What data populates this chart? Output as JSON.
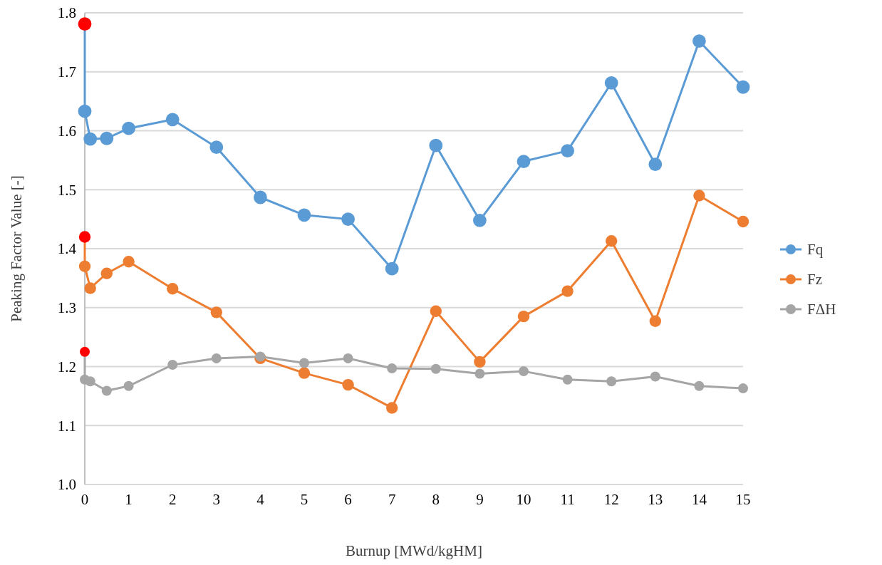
{
  "chart_data": {
    "type": "line",
    "xlabel": "Burnup [MWd/kgHM]",
    "ylabel": "Peaking Factor Value [-]",
    "x": [
      0,
      0,
      0.125,
      0.5,
      1,
      2,
      3,
      4,
      5,
      6,
      7,
      8,
      9,
      10,
      11,
      12,
      13,
      14,
      15
    ],
    "xlim": [
      0,
      15
    ],
    "xticks": [
      0,
      1,
      2,
      3,
      4,
      5,
      6,
      7,
      8,
      9,
      10,
      11,
      12,
      13,
      14,
      15
    ],
    "ylim": [
      1.0,
      1.8
    ],
    "yticks": [
      {
        "value": 1.0,
        "label": "1.0"
      },
      {
        "value": 1.1,
        "label": "1.1"
      },
      {
        "value": 1.2,
        "label": "1.2"
      },
      {
        "value": 1.3,
        "label": "1.3"
      },
      {
        "value": 1.4,
        "label": "1.4"
      },
      {
        "value": 1.5,
        "label": "1.5"
      },
      {
        "value": 1.6,
        "label": "1.6"
      },
      {
        "value": 1.7,
        "label": "1.7"
      },
      {
        "value": 1.8,
        "label": "1.8"
      }
    ],
    "grid": "y",
    "legend": "right",
    "marker": "circle",
    "line_style": "solid",
    "series": [
      {
        "name": "Fq",
        "color": "#5b9bd5",
        "colors": [
          "#ff0000",
          "#5b9bd5",
          "#5b9bd5",
          "#5b9bd5",
          "#5b9bd5",
          "#5b9bd5",
          "#5b9bd5",
          "#5b9bd5",
          "#5b9bd5",
          "#5b9bd5",
          "#5b9bd5",
          "#5b9bd5",
          "#5b9bd5",
          "#5b9bd5",
          "#5b9bd5",
          "#5b9bd5",
          "#5b9bd5",
          "#5b9bd5",
          "#5b9bd5"
        ],
        "values": [
          1.781,
          1.633,
          1.586,
          1.587,
          1.604,
          1.619,
          1.572,
          1.487,
          1.457,
          1.45,
          1.366,
          1.575,
          1.448,
          1.548,
          1.566,
          1.681,
          1.543,
          1.752,
          1.674
        ]
      },
      {
        "name": "Fz",
        "color": "#ed7d31",
        "colors": [
          "#ff0000",
          "#ed7d31",
          "#ed7d31",
          "#ed7d31",
          "#ed7d31",
          "#ed7d31",
          "#ed7d31",
          "#ed7d31",
          "#ed7d31",
          "#ed7d31",
          "#ed7d31",
          "#ed7d31",
          "#ed7d31",
          "#ed7d31",
          "#ed7d31",
          "#ed7d31",
          "#ed7d31",
          "#ed7d31",
          "#ed7d31"
        ],
        "values": [
          1.42,
          1.37,
          1.333,
          1.358,
          1.378,
          1.332,
          1.292,
          1.214,
          1.189,
          1.169,
          1.13,
          1.294,
          1.208,
          1.285,
          1.328,
          1.413,
          1.277,
          1.49,
          1.446
        ]
      },
      {
        "name": "FΔH",
        "color": "#a5a5a5",
        "colors": [
          "#ff0000",
          "#a5a5a5",
          "#a5a5a5",
          "#a5a5a5",
          "#a5a5a5",
          "#a5a5a5",
          "#a5a5a5",
          "#a5a5a5",
          "#a5a5a5",
          "#a5a5a5",
          "#a5a5a5",
          "#a5a5a5",
          "#a5a5a5",
          "#a5a5a5",
          "#a5a5a5",
          "#a5a5a5",
          "#a5a5a5",
          "#a5a5a5",
          "#a5a5a5"
        ],
        "values": [
          1.225,
          1.178,
          1.175,
          1.159,
          1.167,
          1.203,
          1.214,
          1.217,
          1.206,
          1.214,
          1.197,
          1.196,
          1.188,
          1.192,
          1.178,
          1.175,
          1.183,
          1.167,
          1.163
        ]
      }
    ]
  }
}
